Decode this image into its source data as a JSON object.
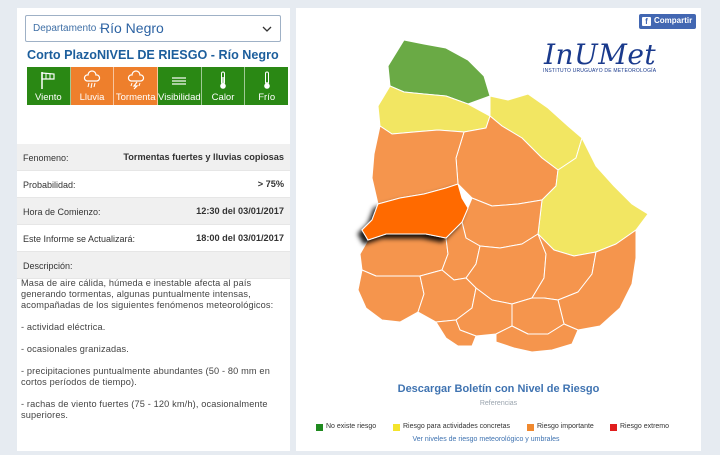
{
  "department": {
    "prefix": "Departamento -",
    "value": "Río Negro"
  },
  "title": "Corto PlazoNIVEL DE RIESGO - Río Negro",
  "risk_tiles": [
    {
      "label": "Viento",
      "icon": "wind-flag-icon",
      "level": "green"
    },
    {
      "label": "Lluvia",
      "icon": "rain-cloud-icon",
      "level": "orange"
    },
    {
      "label": "Tormenta",
      "icon": "storm-cloud-icon",
      "level": "orange"
    },
    {
      "label": "Visibilidad",
      "icon": "fog-lines-icon",
      "level": "green"
    },
    {
      "label": "Calor",
      "icon": "thermometer-icon",
      "level": "green"
    },
    {
      "label": "Frío",
      "icon": "thermometer-icon",
      "level": "green"
    }
  ],
  "info": {
    "phenomenon": {
      "key": "Fenomeno:",
      "value": "Tormentas fuertes y lluvias copiosas"
    },
    "probability": {
      "key": "Probabilidad:",
      "value": "> 75%"
    },
    "start": {
      "key": "Hora de Comienzo:",
      "value": "12:30 del 03/01/2017"
    },
    "update": {
      "key": "Este Informe se Actualizará:",
      "value": "18:00 del 03/01/2017"
    },
    "description_label": "Descripción:"
  },
  "description": [
    "Masa de aire cálida, húmeda e inestable afecta al país generando tormentas, algunas puntualmente intensas, acompañadas de los siguientes fenómenos meteorológicos:",
    "- actividad eléctrica.",
    "- ocasionales granizadas.",
    "- precipitaciones puntualmente abundantes (50 - 80 mm en cortos períodos de tiempo).",
    "- rachas de viento fuertes (75 - 120 km/h), ocasionalmente superiores."
  ],
  "share": {
    "label": "Compartir"
  },
  "logo": {
    "main": "InUMet",
    "sub": "INSTITUTO URUGUAYO DE METEOROLOGÍA"
  },
  "download_label": "Descargar Boletín con Nivel de Riesgo",
  "references": {
    "title": "Referencias",
    "items": [
      {
        "label": "No existe riesgo",
        "color": "#1f8a1f"
      },
      {
        "label": "Riesgo para actividades concretas",
        "color": "#f4e42c"
      },
      {
        "label": "Riesgo importante",
        "color": "#f0892f"
      },
      {
        "label": "Riesgo extremo",
        "color": "#e01d1d"
      }
    ],
    "more_link": "Ver niveles de riesgo meteorológico y umbrales"
  },
  "colors": {
    "green": "#6aaa45",
    "yellow": "#f2e662",
    "orange": "#f5954d",
    "selected": "#ff6a00",
    "accent": "#1c5e9c"
  }
}
